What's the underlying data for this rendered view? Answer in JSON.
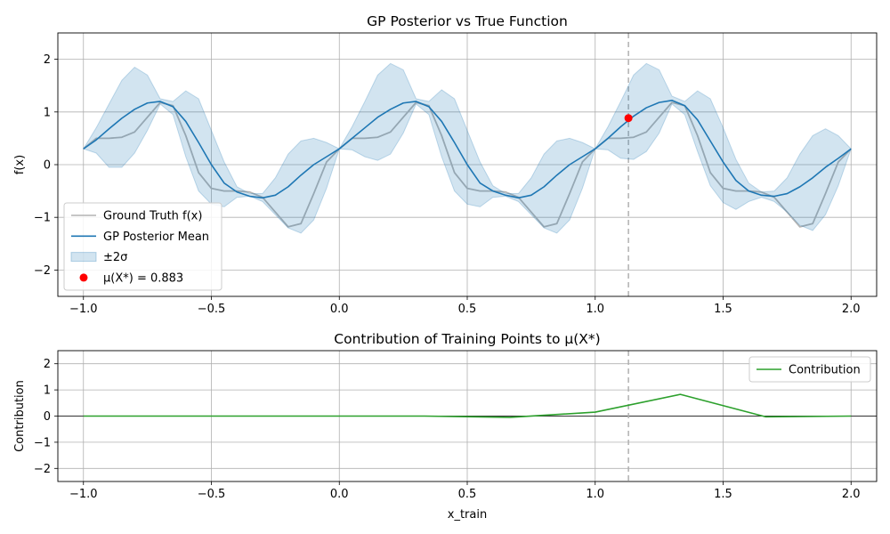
{
  "chart_data": [
    {
      "type": "line",
      "title": "GP Posterior vs True Function",
      "xlabel": "",
      "ylabel": "f(x)",
      "xlim": [
        -1.1,
        2.1
      ],
      "ylim": [
        -2.5,
        2.5
      ],
      "xticks": [
        -1.0,
        -0.5,
        0.0,
        0.5,
        1.0,
        1.5,
        2.0
      ],
      "xtick_labels": [
        "−1.0",
        "−0.5",
        "0.0",
        "0.5",
        "1.0",
        "1.5",
        "2.0"
      ],
      "yticks": [
        -2,
        -1,
        0,
        1,
        2
      ],
      "ytick_labels": [
        "−2",
        "−1",
        "0",
        "1",
        "2"
      ],
      "grid": true,
      "legend_position": "lower-left",
      "vline_x": 1.13,
      "series": [
        {
          "name": "Ground Truth f(x)",
          "kind": "line",
          "color": "#b3b3b3",
          "x": [
            -1.0,
            -0.95,
            -0.9,
            -0.85,
            -0.8,
            -0.75,
            -0.7,
            -0.65,
            -0.6,
            -0.55,
            -0.5,
            -0.45,
            -0.4,
            -0.35,
            -0.3,
            -0.25,
            -0.2,
            -0.15,
            -0.1,
            -0.05,
            0.0,
            0.05,
            0.1,
            0.15,
            0.2,
            0.25,
            0.3,
            0.35,
            0.4,
            0.45,
            0.5,
            0.55,
            0.6,
            0.65,
            0.7,
            0.75,
            0.8,
            0.85,
            0.9,
            0.95,
            1.0,
            1.05,
            1.1,
            1.15,
            1.2,
            1.25,
            1.3,
            1.35,
            1.4,
            1.45,
            1.5,
            1.55,
            1.6,
            1.65,
            1.7,
            1.75,
            1.8,
            1.85,
            1.9,
            1.95,
            2.0
          ],
          "y": [
            0.3,
            0.5,
            0.5,
            0.52,
            0.62,
            0.9,
            1.18,
            1.12,
            0.55,
            -0.15,
            -0.45,
            -0.5,
            -0.5,
            -0.52,
            -0.62,
            -0.9,
            -1.18,
            -1.12,
            -0.55,
            0.05,
            0.3,
            0.5,
            0.5,
            0.52,
            0.62,
            0.9,
            1.18,
            1.12,
            0.55,
            -0.15,
            -0.45,
            -0.5,
            -0.5,
            -0.52,
            -0.62,
            -0.9,
            -1.18,
            -1.12,
            -0.55,
            0.05,
            0.3,
            0.5,
            0.5,
            0.52,
            0.62,
            0.9,
            1.18,
            1.12,
            0.55,
            -0.15,
            -0.45,
            -0.5,
            -0.5,
            -0.52,
            -0.62,
            -0.9,
            -1.18,
            -1.12,
            -0.55,
            0.05,
            0.3
          ]
        },
        {
          "name": "GP Posterior Mean",
          "kind": "line",
          "color": "#1f77b4",
          "x": [
            -1.0,
            -0.95,
            -0.9,
            -0.85,
            -0.8,
            -0.75,
            -0.7,
            -0.65,
            -0.6,
            -0.55,
            -0.5,
            -0.45,
            -0.4,
            -0.35,
            -0.3,
            -0.25,
            -0.2,
            -0.15,
            -0.1,
            -0.05,
            0.0,
            0.05,
            0.1,
            0.15,
            0.2,
            0.25,
            0.3,
            0.35,
            0.4,
            0.45,
            0.5,
            0.55,
            0.6,
            0.65,
            0.7,
            0.75,
            0.8,
            0.85,
            0.9,
            0.95,
            1.0,
            1.05,
            1.1,
            1.15,
            1.2,
            1.25,
            1.3,
            1.35,
            1.4,
            1.45,
            1.5,
            1.55,
            1.6,
            1.65,
            1.7,
            1.75,
            1.8,
            1.85,
            1.9,
            1.95,
            2.0
          ],
          "y": [
            0.3,
            0.47,
            0.68,
            0.88,
            1.05,
            1.17,
            1.2,
            1.1,
            0.82,
            0.42,
            0.0,
            -0.35,
            -0.52,
            -0.6,
            -0.63,
            -0.58,
            -0.42,
            -0.2,
            0.0,
            0.15,
            0.3,
            0.5,
            0.7,
            0.9,
            1.05,
            1.17,
            1.2,
            1.1,
            0.82,
            0.42,
            0.0,
            -0.35,
            -0.5,
            -0.58,
            -0.63,
            -0.58,
            -0.42,
            -0.2,
            0.0,
            0.15,
            0.3,
            0.5,
            0.72,
            0.92,
            1.08,
            1.18,
            1.22,
            1.12,
            0.85,
            0.45,
            0.05,
            -0.3,
            -0.5,
            -0.58,
            -0.6,
            -0.55,
            -0.42,
            -0.25,
            -0.05,
            0.12,
            0.3
          ]
        },
        {
          "name": "±2σ",
          "kind": "band",
          "color": "#1f77b4",
          "x": [
            -1.0,
            -0.95,
            -0.9,
            -0.85,
            -0.8,
            -0.75,
            -0.7,
            -0.65,
            -0.6,
            -0.55,
            -0.5,
            -0.45,
            -0.4,
            -0.35,
            -0.3,
            -0.25,
            -0.2,
            -0.15,
            -0.1,
            -0.05,
            0.0,
            0.05,
            0.1,
            0.15,
            0.2,
            0.25,
            0.3,
            0.35,
            0.4,
            0.45,
            0.5,
            0.55,
            0.6,
            0.65,
            0.7,
            0.75,
            0.8,
            0.85,
            0.9,
            0.95,
            1.0,
            1.05,
            1.1,
            1.15,
            1.2,
            1.25,
            1.3,
            1.35,
            1.4,
            1.45,
            1.5,
            1.55,
            1.6,
            1.65,
            1.7,
            1.75,
            1.8,
            1.85,
            1.9,
            1.95,
            2.0
          ],
          "upper": [
            0.3,
            0.7,
            1.15,
            1.6,
            1.85,
            1.7,
            1.25,
            1.2,
            1.4,
            1.25,
            0.65,
            0.05,
            -0.42,
            -0.55,
            -0.55,
            -0.25,
            0.2,
            0.45,
            0.5,
            0.42,
            0.3,
            0.72,
            1.2,
            1.7,
            1.92,
            1.8,
            1.25,
            1.2,
            1.42,
            1.25,
            0.65,
            0.05,
            -0.4,
            -0.55,
            -0.55,
            -0.25,
            0.2,
            0.45,
            0.5,
            0.42,
            0.3,
            0.72,
            1.2,
            1.7,
            1.92,
            1.8,
            1.3,
            1.2,
            1.4,
            1.25,
            0.7,
            0.1,
            -0.35,
            -0.52,
            -0.5,
            -0.25,
            0.2,
            0.55,
            0.68,
            0.55,
            0.3
          ],
          "lower": [
            0.3,
            0.22,
            -0.05,
            -0.05,
            0.22,
            0.65,
            1.15,
            0.95,
            0.15,
            -0.5,
            -0.75,
            -0.8,
            -0.62,
            -0.6,
            -0.7,
            -0.95,
            -1.2,
            -1.3,
            -1.05,
            -0.45,
            0.3,
            0.28,
            0.15,
            0.08,
            0.2,
            0.6,
            1.15,
            0.95,
            0.15,
            -0.5,
            -0.75,
            -0.8,
            -0.62,
            -0.6,
            -0.7,
            -0.95,
            -1.2,
            -1.3,
            -1.05,
            -0.45,
            0.3,
            0.28,
            0.12,
            0.1,
            0.25,
            0.6,
            1.15,
            0.95,
            0.25,
            -0.4,
            -0.72,
            -0.85,
            -0.7,
            -0.62,
            -0.7,
            -0.9,
            -1.15,
            -1.25,
            -0.95,
            -0.4,
            0.3
          ]
        },
        {
          "name": "μ(X*) = 0.883",
          "kind": "point",
          "color": "#ff0000",
          "x": [
            1.13
          ],
          "y": [
            0.883
          ]
        }
      ]
    },
    {
      "type": "line",
      "title": "Contribution of Training Points to μ(X*)",
      "xlabel": "x_train",
      "ylabel": "Contribution",
      "xlim": [
        -1.1,
        2.1
      ],
      "ylim": [
        -2.5,
        2.5
      ],
      "xticks": [
        -1.0,
        -0.5,
        0.0,
        0.5,
        1.0,
        1.5,
        2.0
      ],
      "xtick_labels": [
        "−1.0",
        "−0.5",
        "0.0",
        "0.5",
        "1.0",
        "1.5",
        "2.0"
      ],
      "yticks": [
        -2,
        -1,
        0,
        1,
        2
      ],
      "ytick_labels": [
        "−2",
        "−1",
        "0",
        "1",
        "2"
      ],
      "grid": true,
      "legend_position": "top-right",
      "vline_x": 1.13,
      "hline_y": 0,
      "series": [
        {
          "name": "Contribution",
          "kind": "line",
          "color": "#2ca02c",
          "x": [
            -1.0,
            -0.667,
            -0.333,
            0.0,
            0.333,
            0.667,
            1.0,
            1.333,
            1.667,
            2.0
          ],
          "y": [
            0.0,
            0.0,
            0.0,
            0.0,
            0.0,
            -0.05,
            0.15,
            0.83,
            -0.03,
            0.0
          ]
        }
      ]
    }
  ]
}
